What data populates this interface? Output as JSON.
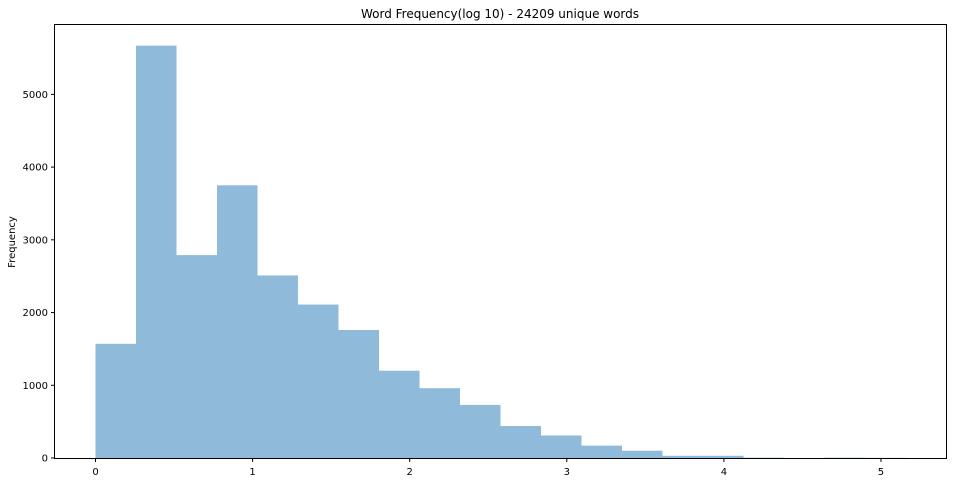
{
  "chart_data": {
    "type": "bar",
    "title": "Word Frequency(log 10) - 24209 unique words",
    "xlabel": "",
    "ylabel": "Frequency",
    "bin_edges": [
      0.0,
      0.2578,
      0.5156,
      0.7734,
      1.0312,
      1.289,
      1.5468,
      1.8046,
      2.0624,
      2.3202,
      2.578,
      2.8358,
      3.0936,
      3.3514,
      3.6092,
      3.867,
      4.1248,
      4.3826,
      4.6404,
      4.8982,
      5.156
    ],
    "values": [
      1570,
      5670,
      2790,
      3750,
      2510,
      2110,
      1760,
      1200,
      960,
      730,
      440,
      310,
      170,
      100,
      30,
      30,
      5,
      0,
      5,
      2
    ],
    "xlim": [
      -0.2578,
      5.4138
    ],
    "ylim": [
      0,
      5954
    ],
    "xticks": [
      0,
      1,
      2,
      3,
      4,
      5
    ],
    "yticks": [
      0,
      1000,
      2000,
      3000,
      4000,
      5000
    ],
    "bar_color": "#8fbad9",
    "grid": false,
    "legend": "none"
  }
}
